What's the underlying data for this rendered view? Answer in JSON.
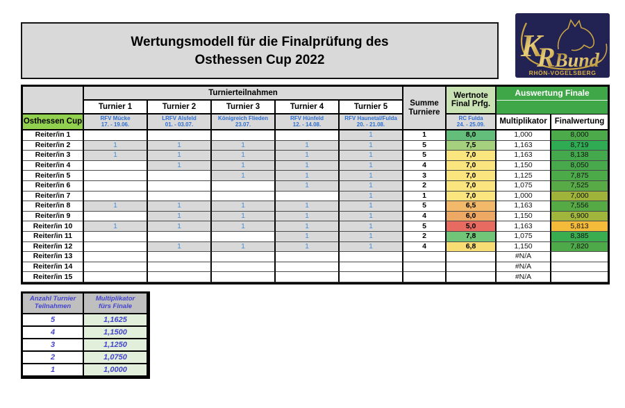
{
  "title": {
    "line1": "Wertungsmodell für die Finalprüfung des",
    "line2": "Osthessen Cup 2022"
  },
  "logo": {
    "k": "K",
    "r": "R",
    "bund": "Bund",
    "sub": "RHÖN-VOGELSBERG",
    "bg_color": "#222253",
    "gold_color": "#c9a544"
  },
  "main_table": {
    "group_header": "Turnierteilnahmen",
    "corner_label": "Osthessen Cup",
    "summe_header_line1": "Summe",
    "summe_header_line2": "Turniere",
    "wertnote_header_line1": "Wertnote",
    "wertnote_header_line2": "Final Prfg.",
    "final_prfg_venue": "RC Fulda",
    "final_prfg_date": "24. - 25.09.",
    "auswertung_header": "Auswertung Finale",
    "multiplikator_header": "Multiplikator",
    "finalwertung_header": "Finalwertung",
    "tourneys": [
      {
        "label": "Turnier 1",
        "venue": "RFV Mücke",
        "date": "17. - 19.06."
      },
      {
        "label": "Turnier 2",
        "venue": "LRFV Alsfeld",
        "date": "01. - 03.07."
      },
      {
        "label": "Turnier 3",
        "venue": "Königreich Flieden",
        "date": "23.07."
      },
      {
        "label": "Turnier 4",
        "venue": "RFV Hünfeld",
        "date": "12. - 14.08."
      },
      {
        "label": "Turnier 5",
        "venue": "RFV Haunetal/Fulda",
        "date": "20. - 21.08."
      }
    ],
    "rows": [
      {
        "label": "Reiter/in 1",
        "participation": [
          "",
          "",
          "",
          "",
          "1"
        ],
        "summe": "1",
        "wertnote": "8,0",
        "wertnote_color": "#63be7b",
        "multiplikator": "1,000",
        "finalwertung": "8,000",
        "final_color": "#4caa4b"
      },
      {
        "label": "Reiter/in 2",
        "participation": [
          "1",
          "1",
          "1",
          "1",
          "1"
        ],
        "summe": "5",
        "wertnote": "7,5",
        "wertnote_color": "#a5d17e",
        "multiplikator": "1,163",
        "finalwertung": "8,719",
        "final_color": "#2fab53"
      },
      {
        "label": "Reiter/in 3",
        "participation": [
          "1",
          "1",
          "1",
          "1",
          "1"
        ],
        "summe": "5",
        "wertnote": "7,0",
        "wertnote_color": "#fbe57e",
        "multiplikator": "1,163",
        "finalwertung": "8,138",
        "final_color": "#44a94c"
      },
      {
        "label": "Reiter/in 4",
        "participation": [
          "",
          "1",
          "1",
          "1",
          "1"
        ],
        "summe": "4",
        "wertnote": "7,0",
        "wertnote_color": "#fbe57e",
        "multiplikator": "1,150",
        "finalwertung": "8,050",
        "final_color": "#47a94b"
      },
      {
        "label": "Reiter/in 5",
        "participation": [
          "",
          "",
          "1",
          "1",
          "1"
        ],
        "summe": "3",
        "wertnote": "7,0",
        "wertnote_color": "#fbe57e",
        "multiplikator": "1,125",
        "finalwertung": "7,875",
        "final_color": "#4daa49"
      },
      {
        "label": "Reiter/in 6",
        "participation": [
          "",
          "",
          "",
          "1",
          "1"
        ],
        "summe": "2",
        "wertnote": "7,0",
        "wertnote_color": "#fbe57e",
        "multiplikator": "1,075",
        "finalwertung": "7,525",
        "final_color": "#57aa46"
      },
      {
        "label": "Reiter/in 7",
        "participation": [
          "",
          "",
          "",
          "",
          "1"
        ],
        "summe": "1",
        "wertnote": "7,0",
        "wertnote_color": "#fbe57e",
        "multiplikator": "1,000",
        "finalwertung": "7,000",
        "final_color": "#9fb23a"
      },
      {
        "label": "Reiter/in 8",
        "participation": [
          "1",
          "1",
          "1",
          "1",
          "1"
        ],
        "summe": "5",
        "wertnote": "6,5",
        "wertnote_color": "#f2b96b",
        "multiplikator": "1,163",
        "finalwertung": "7,556",
        "final_color": "#56aa46"
      },
      {
        "label": "Reiter/in 9",
        "participation": [
          "",
          "1",
          "1",
          "1",
          "1"
        ],
        "summe": "4",
        "wertnote": "6,0",
        "wertnote_color": "#eda863",
        "multiplikator": "1,150",
        "finalwertung": "6,900",
        "final_color": "#a0b53c"
      },
      {
        "label": "Reiter/in 10",
        "participation": [
          "1",
          "1",
          "1",
          "1",
          "1"
        ],
        "summe": "5",
        "wertnote": "5,0",
        "wertnote_color": "#e86b62",
        "multiplikator": "1,163",
        "finalwertung": "5,813",
        "final_color": "#f4bb3b"
      },
      {
        "label": "Reiter/in 11",
        "participation": [
          "",
          "",
          "",
          "1",
          "1"
        ],
        "summe": "2",
        "wertnote": "7,8",
        "wertnote_color": "#71c578",
        "multiplikator": "1,075",
        "finalwertung": "8,385",
        "final_color": "#3aad51"
      },
      {
        "label": "Reiter/in 12",
        "participation": [
          "",
          "1",
          "1",
          "1",
          "1"
        ],
        "summe": "4",
        "wertnote": "6,8",
        "wertnote_color": "#f8dc74",
        "multiplikator": "1,150",
        "finalwertung": "7,820",
        "final_color": "#4ea948"
      },
      {
        "label": "Reiter/in 13",
        "participation": [
          "",
          "",
          "",
          "",
          ""
        ],
        "summe": "",
        "wertnote": "",
        "wertnote_color": "",
        "multiplikator": "#N/A",
        "finalwertung": "",
        "final_color": ""
      },
      {
        "label": "Reiter/in 14",
        "participation": [
          "",
          "",
          "",
          "",
          ""
        ],
        "summe": "",
        "wertnote": "",
        "wertnote_color": "",
        "multiplikator": "#N/A",
        "finalwertung": "",
        "final_color": ""
      },
      {
        "label": "Reiter/in 15",
        "participation": [
          "",
          "",
          "",
          "",
          ""
        ],
        "summe": "",
        "wertnote": "",
        "wertnote_color": "",
        "multiplikator": "#N/A",
        "finalwertung": "",
        "final_color": ""
      }
    ]
  },
  "legend_table": {
    "header_col1_line1": "Anzahl Turnier",
    "header_col1_line2": "Teilnahmen",
    "header_col2_line1": "Multiplikator",
    "header_col2_line2": "fürs Finale",
    "rows": [
      {
        "anzahl": "5",
        "multiplikator": "1,1625"
      },
      {
        "anzahl": "4",
        "multiplikator": "1,1500"
      },
      {
        "anzahl": "3",
        "multiplikator": "1,1250"
      },
      {
        "anzahl": "2",
        "multiplikator": "1,0750"
      },
      {
        "anzahl": "1",
        "multiplikator": "1,0000"
      }
    ]
  },
  "colors": {
    "cell_gray": "#d9d9d9",
    "osthessen_green": "#92d050",
    "auswertung_green": "#3fa747",
    "wertnote_header_green": "#c9e2b4",
    "legend_green": "#e2efda",
    "blue_text": "#2e6fd2"
  }
}
